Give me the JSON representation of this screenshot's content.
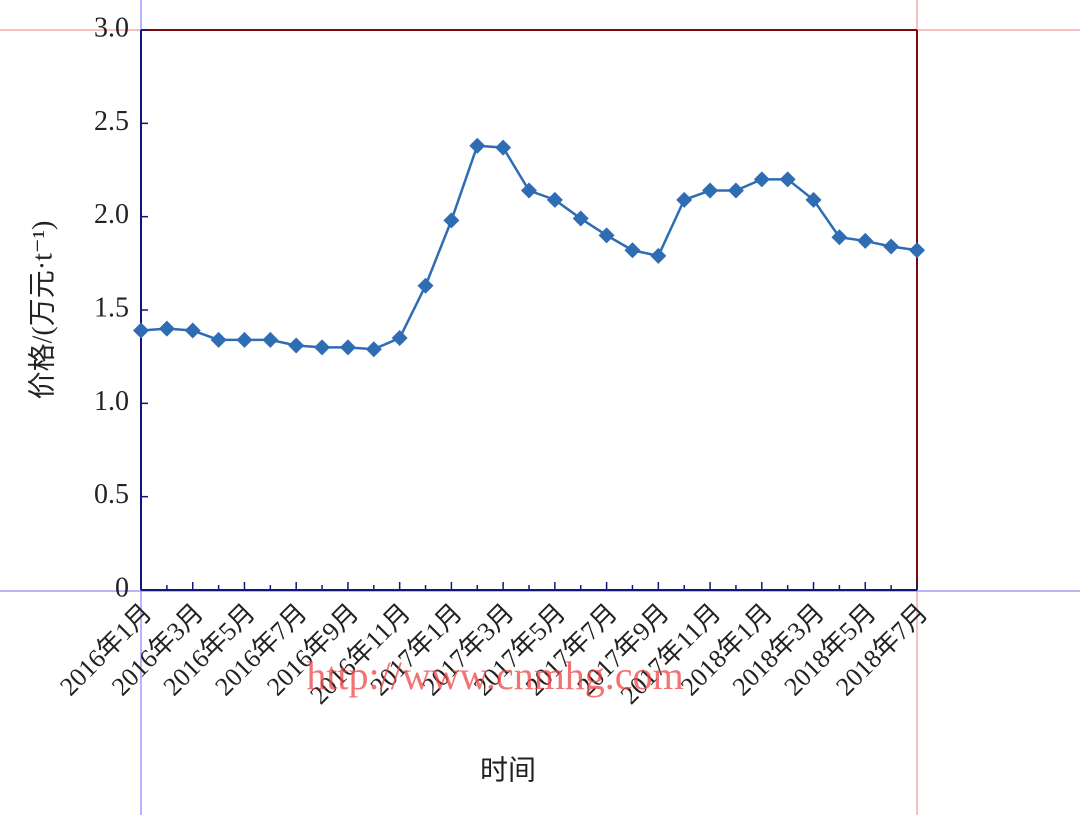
{
  "chart_data": {
    "type": "line",
    "y_label": "价格/(万元·t⁻¹)",
    "x_label": "时间",
    "watermark": "http://www.cnmhg.com",
    "categories": [
      "2016年1月",
      null,
      "2016年3月",
      null,
      "2016年5月",
      null,
      "2016年7月",
      null,
      "2016年9月",
      null,
      "2016年11月",
      null,
      "2017年1月",
      null,
      "2017年3月",
      null,
      "2017年5月",
      null,
      "2017年7月",
      null,
      "2017年9月",
      null,
      "2017年11月",
      null,
      "2018年1月",
      null,
      "2018年3月",
      null,
      "2018年5月",
      null,
      "2018年7月"
    ],
    "series": [
      {
        "color": "#2e6db4",
        "values": [
          1.39,
          1.4,
          1.39,
          1.34,
          1.34,
          1.34,
          1.31,
          1.3,
          1.3,
          1.29,
          1.35,
          1.63,
          1.98,
          2.38,
          2.37,
          2.14,
          2.09,
          1.99,
          1.9,
          1.82,
          1.79,
          2.09,
          2.14,
          2.14,
          2.2,
          2.2,
          2.09,
          1.89,
          1.87,
          1.84,
          1.82
        ]
      }
    ],
    "ylim": [
      0,
      3
    ],
    "yticks": [
      0,
      0.5,
      {
        "value": 1,
        "label": "1.0"
      },
      1.5,
      {
        "value": 2,
        "label": "2.0"
      },
      2.5,
      {
        "value": 3,
        "label": "3.0"
      }
    ]
  }
}
